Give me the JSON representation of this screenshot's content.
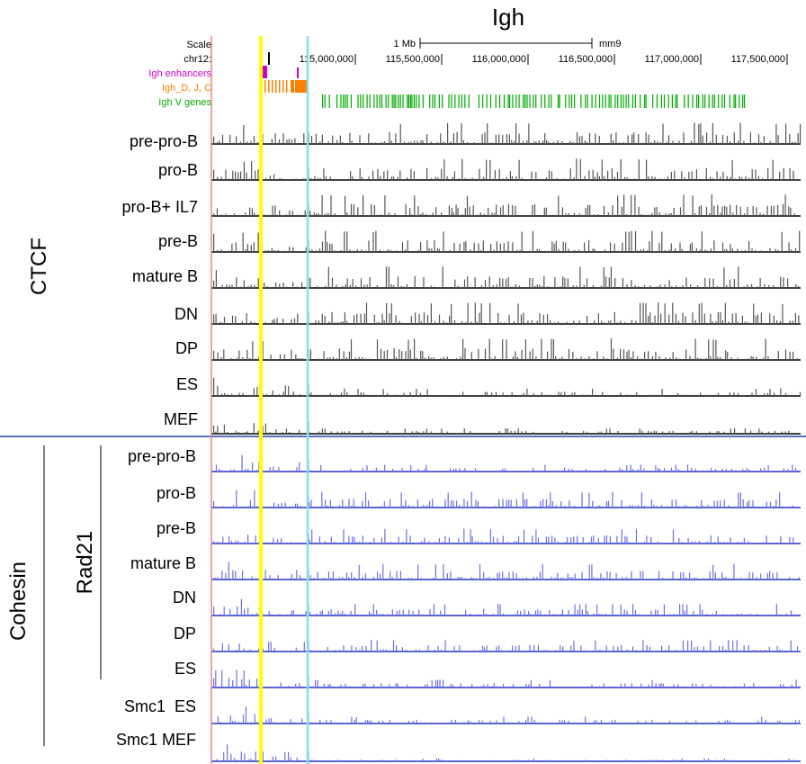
{
  "title": "Igh",
  "browser": {
    "scale_label": "Scale",
    "scale_bar_label": "1 Mb",
    "assembly": "mm9",
    "chrom_label": "chr12:",
    "position_ticks": [
      "115,000,000",
      "115,500,000",
      "116,000,000",
      "116,500,000",
      "117,000,000",
      "117,500,000"
    ]
  },
  "annotation_tracks": [
    {
      "label": "Igh enhancers",
      "color": "#cc00cc"
    },
    {
      "label": "Igh_D, J, C",
      "color": "#ff8000"
    },
    {
      "label": "Igh V genes",
      "color": "#00aa00"
    }
  ],
  "groups": {
    "ctcf": "CTCF",
    "cohesin": "Cohesin",
    "rad21": "Rad21"
  },
  "colors": {
    "ctcf_signal": "#555555",
    "ctcf_baseline": "#000000",
    "cohesin_signal": "#6f6fe0",
    "cohesin_baseline": "#2233cc",
    "yellow_marker": "#ffff00",
    "cyan_marker": "#88ddee",
    "left_edge": "#f08080",
    "divider": "#2244aa"
  },
  "chart_data": {
    "type": "genome-browser-tracks",
    "ctcf_tracks": [
      "pre-pro-B",
      "pro-B",
      "pro-B+ IL7",
      "pre-B",
      "mature B",
      "DN",
      "DP",
      "ES",
      "MEF"
    ],
    "rad21_tracks": [
      "pre-pro-B",
      "pro-B",
      "pre-B",
      "mature B",
      "DN",
      "DP",
      "ES"
    ],
    "smc1_tracks": [
      "Smc1  ES",
      "Smc1 MEF"
    ]
  }
}
